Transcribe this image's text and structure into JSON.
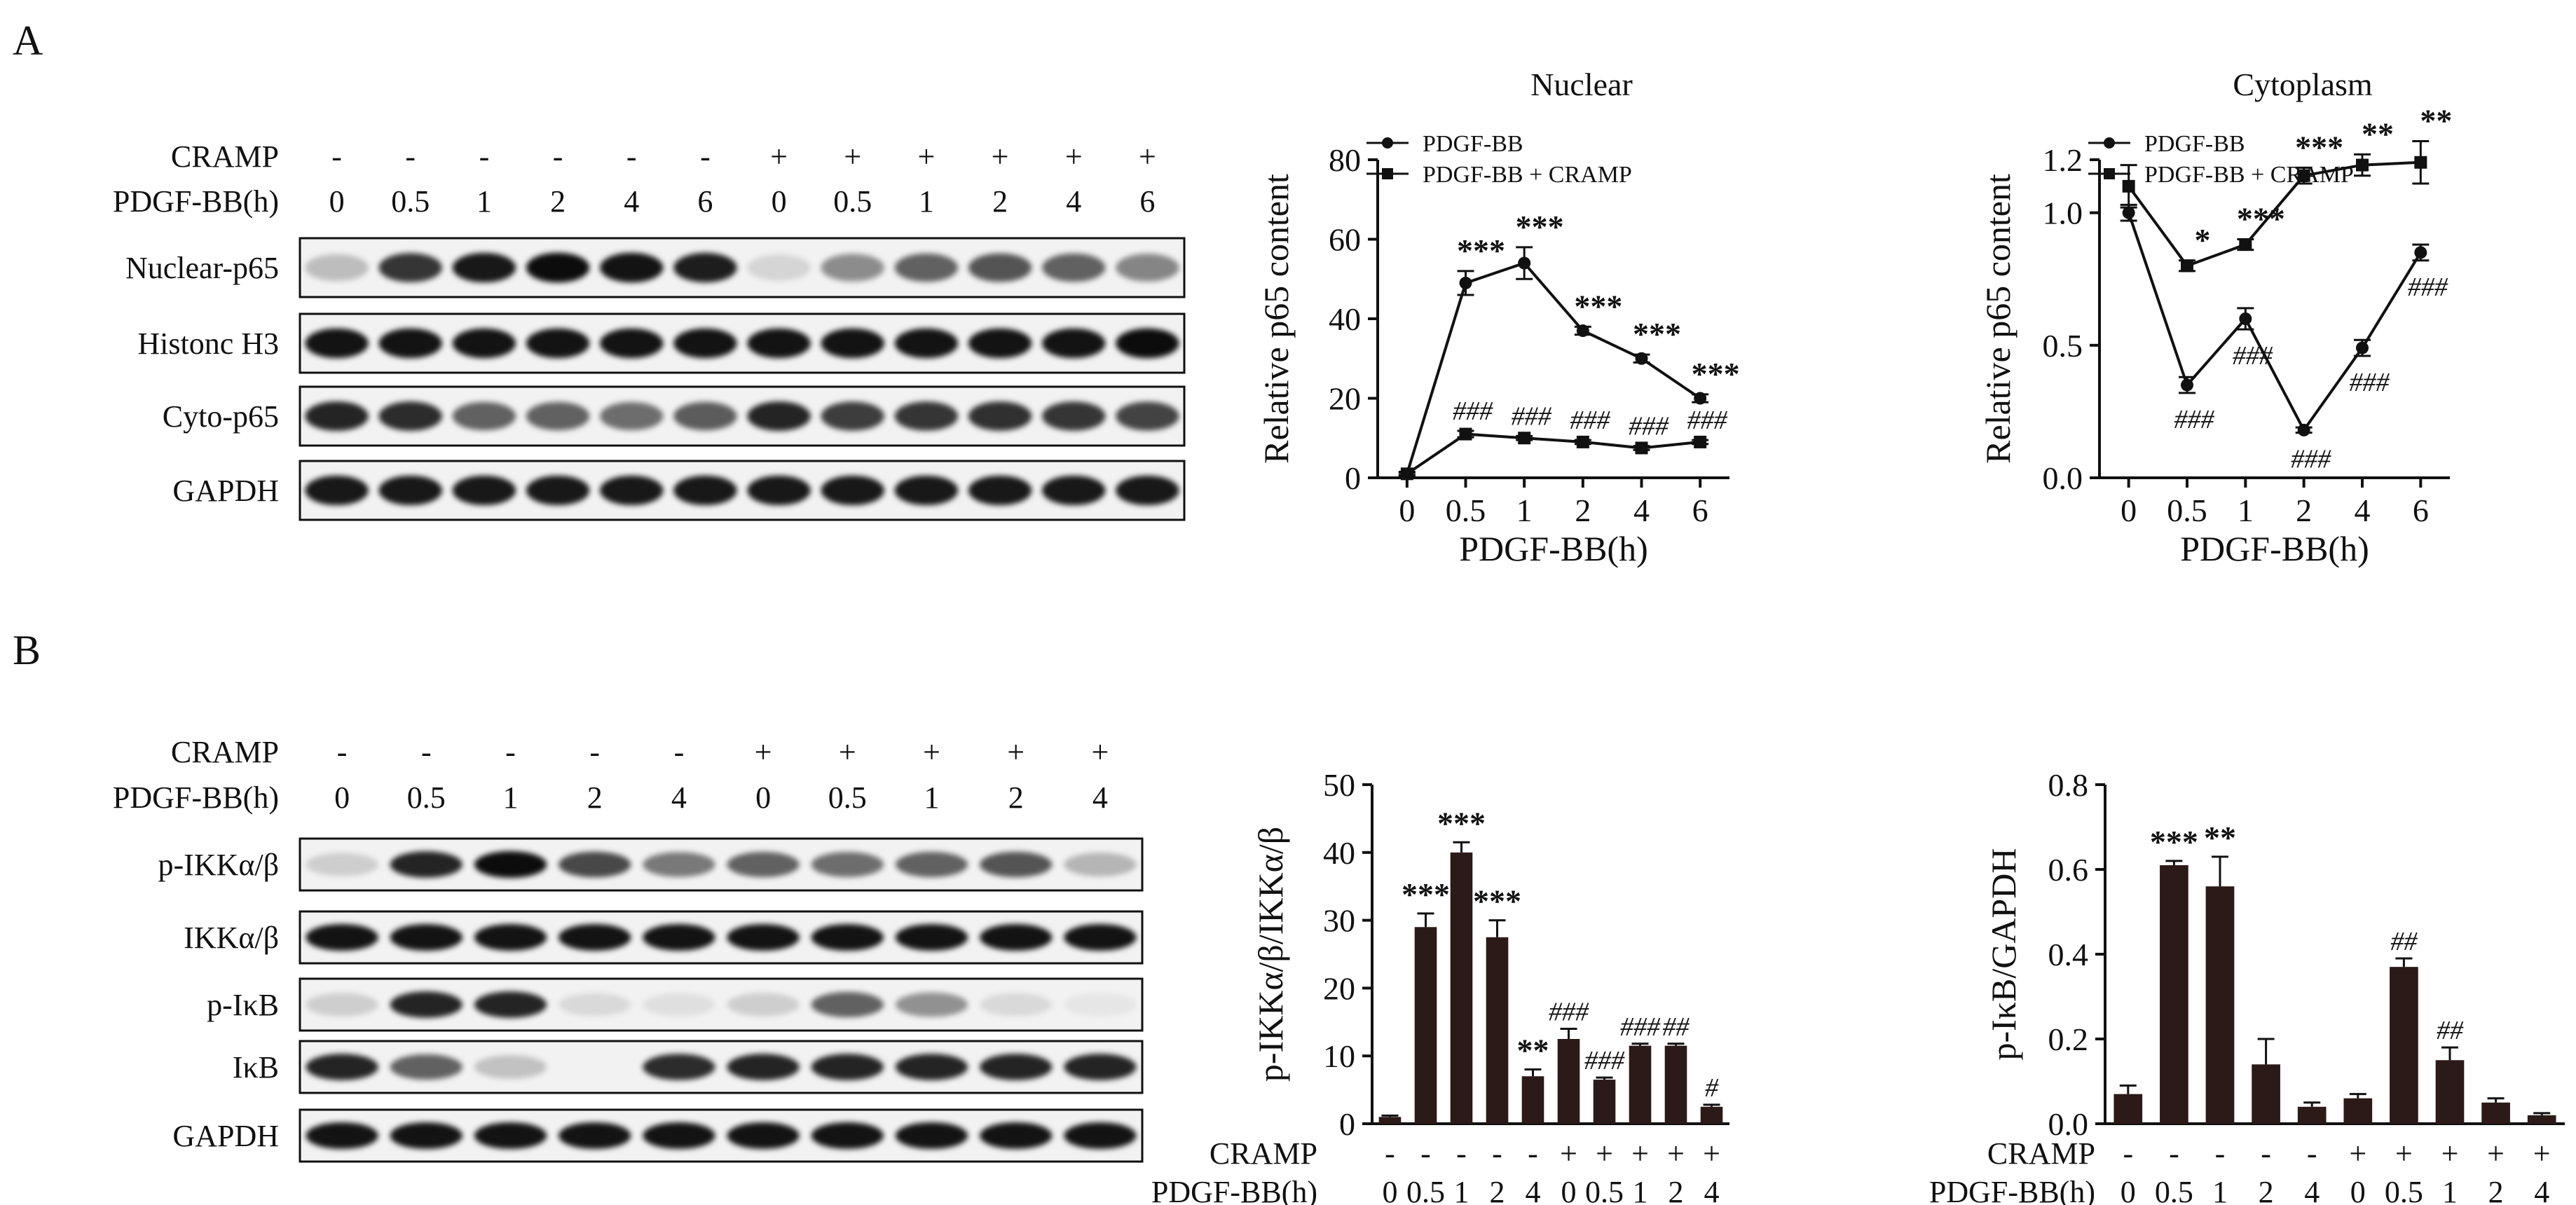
{
  "panel_a": {
    "letter": "A",
    "blot": {
      "cramp_label": "CRAMP",
      "time_label": "PDGF-BB(h)",
      "cramp_signs": [
        "-",
        "-",
        "-",
        "-",
        "-",
        "-",
        "+",
        "+",
        "+",
        "+",
        "+",
        "+"
      ],
      "times": [
        "0",
        "0.5",
        "1",
        "2",
        "4",
        "6",
        "0",
        "0.5",
        "1",
        "2",
        "4",
        "6"
      ],
      "rows": [
        {
          "label": "Nuclear-p65",
          "intensity": [
            0.22,
            0.78,
            0.9,
            0.95,
            0.92,
            0.88,
            0.12,
            0.42,
            0.6,
            0.65,
            0.6,
            0.45
          ]
        },
        {
          "label": "Histonc H3",
          "intensity": [
            0.92,
            0.92,
            0.92,
            0.92,
            0.92,
            0.92,
            0.92,
            0.92,
            0.92,
            0.92,
            0.92,
            0.95
          ]
        },
        {
          "label": "Cyto-p65",
          "intensity": [
            0.85,
            0.82,
            0.6,
            0.6,
            0.55,
            0.62,
            0.85,
            0.75,
            0.78,
            0.8,
            0.78,
            0.72
          ]
        },
        {
          "label": "GAPDH",
          "intensity": [
            0.9,
            0.9,
            0.9,
            0.9,
            0.9,
            0.9,
            0.9,
            0.9,
            0.9,
            0.9,
            0.9,
            0.9
          ]
        }
      ]
    }
  },
  "panel_b": {
    "letter": "B",
    "blot": {
      "cramp_label": "CRAMP",
      "time_label": "PDGF-BB(h)",
      "cramp_signs": [
        "-",
        "-",
        "-",
        "-",
        "-",
        "+",
        "+",
        "+",
        "+",
        "+"
      ],
      "times": [
        "0",
        "0.5",
        "1",
        "2",
        "4",
        "0",
        "0.5",
        "1",
        "2",
        "4"
      ],
      "rows": [
        {
          "label": "p-IKKα/β",
          "intensity": [
            0.15,
            0.85,
            0.95,
            0.7,
            0.5,
            0.6,
            0.55,
            0.6,
            0.65,
            0.25
          ]
        },
        {
          "label": "IKKα/β",
          "intensity": [
            0.92,
            0.92,
            0.92,
            0.92,
            0.92,
            0.92,
            0.92,
            0.92,
            0.92,
            0.92
          ]
        },
        {
          "label": "p-IκB",
          "intensity": [
            0.15,
            0.85,
            0.85,
            0.1,
            0.08,
            0.15,
            0.6,
            0.4,
            0.1,
            0.05
          ]
        },
        {
          "label": "IκB",
          "intensity": [
            0.85,
            0.6,
            0.2,
            0.0,
            0.82,
            0.85,
            0.85,
            0.85,
            0.85,
            0.85
          ]
        },
        {
          "label": "GAPDH",
          "intensity": [
            0.92,
            0.92,
            0.92,
            0.92,
            0.92,
            0.92,
            0.92,
            0.92,
            0.92,
            0.92
          ]
        }
      ]
    }
  },
  "chart_data": [
    {
      "type": "line",
      "title": "Nuclear",
      "xlabel": "PDGF-BB(h)",
      "ylabel": "Relative p65 content",
      "categories": [
        "0",
        "0.5",
        "1",
        "2",
        "4",
        "6"
      ],
      "ylim": [
        0,
        80
      ],
      "yticks": [
        0,
        20,
        40,
        60,
        80
      ],
      "legend_placement": "top-left",
      "series": [
        {
          "name": "PDGF-BB",
          "marker": "circle",
          "values": [
            1,
            49,
            54,
            37,
            30,
            20
          ],
          "errors": [
            0.5,
            3,
            4,
            1,
            1,
            1
          ],
          "annotations": [
            "",
            "***",
            "***",
            "***",
            "***",
            "***"
          ]
        },
        {
          "name": "PDGF-BB + CRAMP",
          "marker": "square",
          "values": [
            1,
            11,
            10,
            9,
            7.5,
            9
          ],
          "errors": [
            0.3,
            0.8,
            0.5,
            0.5,
            0.5,
            0.5
          ],
          "annotations": [
            "",
            "###",
            "###",
            "###",
            "###",
            "###"
          ]
        }
      ]
    },
    {
      "type": "line",
      "title": "Cytoplasm",
      "xlabel": "PDGF-BB(h)",
      "ylabel": "Relative p65 content",
      "categories": [
        "0",
        "0.5",
        "1",
        "2",
        "4",
        "6"
      ],
      "ylim": [
        0,
        1.2
      ],
      "yticks": [
        "0.0",
        "0.5",
        "1.0",
        "1.2"
      ],
      "legend_placement": "top-left",
      "series": [
        {
          "name": "PDGF-BB",
          "marker": "circle",
          "values": [
            1.0,
            0.35,
            0.6,
            0.18,
            0.49,
            0.85
          ],
          "errors": [
            0.03,
            0.03,
            0.04,
            0.01,
            0.03,
            0.03
          ],
          "annotations": [
            "",
            "###",
            "###",
            "###",
            "###",
            "###"
          ]
        },
        {
          "name": "PDGF-BB + CRAMP",
          "marker": "square",
          "values": [
            1.1,
            0.8,
            0.88,
            1.14,
            1.18,
            1.19
          ],
          "errors": [
            0.08,
            0.02,
            0.02,
            0.03,
            0.04,
            0.08
          ],
          "annotations": [
            "",
            "*",
            "***",
            "***",
            "**",
            "**"
          ]
        }
      ]
    },
    {
      "type": "bar",
      "ylabel": "p-IKKα/β/IKKα/β",
      "cramp_label": "CRAMP",
      "time_label": "PDGF-BB(h)",
      "cramp_signs": [
        "-",
        "-",
        "-",
        "-",
        "-",
        "+",
        "+",
        "+",
        "+",
        "+"
      ],
      "categories": [
        "0",
        "0.5",
        "1",
        "2",
        "4",
        "0",
        "0.5",
        "1",
        "2",
        "4"
      ],
      "values": [
        1,
        29,
        40,
        27.5,
        7,
        12.5,
        6.5,
        11.5,
        11.5,
        2.5
      ],
      "errors": [
        0.2,
        2,
        1.5,
        2.5,
        1,
        1.5,
        0.3,
        0.3,
        0.3,
        0.3
      ],
      "annotations": [
        "",
        "***",
        "***",
        "***",
        "**",
        "###",
        "###",
        "###",
        "##",
        "#"
      ],
      "ylim": [
        0,
        50
      ],
      "yticks": [
        0,
        10,
        20,
        30,
        40,
        50
      ]
    },
    {
      "type": "bar",
      "ylabel": "p-IκB/GAPDH",
      "cramp_label": "CRAMP",
      "time_label": "PDGF-BB(h)",
      "cramp_signs": [
        "-",
        "-",
        "-",
        "-",
        "-",
        "+",
        "+",
        "+",
        "+",
        "+"
      ],
      "categories": [
        "0",
        "0.5",
        "1",
        "2",
        "4",
        "0",
        "0.5",
        "1",
        "2",
        "4"
      ],
      "values": [
        0.07,
        0.61,
        0.56,
        0.14,
        0.04,
        0.06,
        0.37,
        0.15,
        0.05,
        0.02
      ],
      "errors": [
        0.02,
        0.01,
        0.07,
        0.06,
        0.01,
        0.01,
        0.02,
        0.03,
        0.01,
        0.005
      ],
      "annotations": [
        "",
        "***",
        "**",
        "",
        "",
        "",
        "##",
        "##",
        "",
        ""
      ],
      "ylim": [
        0,
        0.8
      ],
      "yticks": [
        "0.0",
        "0.2",
        "0.4",
        "0.6",
        "0.8"
      ]
    }
  ]
}
